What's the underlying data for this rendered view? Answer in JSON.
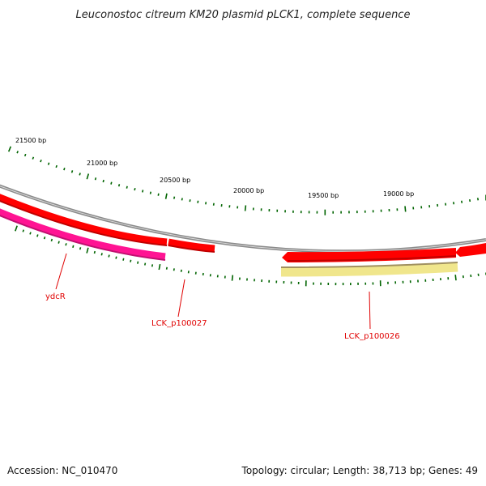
{
  "title": "Leuconostoc citreum KM20 plasmid pLCK1, complete sequence",
  "scale_labels": [
    {
      "bp": 21500,
      "text": "21500 bp"
    },
    {
      "bp": 21000,
      "text": "21000 bp"
    },
    {
      "bp": 20500,
      "text": "20500 bp"
    },
    {
      "bp": 20000,
      "text": "20000 bp"
    },
    {
      "bp": 19500,
      "text": "19500 bp"
    },
    {
      "bp": 19000,
      "text": "19000 bp"
    }
  ],
  "genes": [
    {
      "id": "ydcR",
      "label": "ydcR",
      "color": "#ff1493",
      "strand": "minus"
    },
    {
      "id": "LCK_p100027",
      "label": "LCK_p100027",
      "color": "#ff0000",
      "strand": "plus"
    },
    {
      "id": "LCK_p100026",
      "label": "LCK_p100026",
      "color": "#ff0000",
      "strand": "plus",
      "secondary_color": "#f0e68c"
    }
  ],
  "colors": {
    "backbone": "#808080",
    "cds_plus": "#ff0000",
    "cds_minus": "#ff1493",
    "feature_other": "#f0e68c",
    "ticks": "#006400",
    "gene_label": "#e00000"
  },
  "footer": {
    "accession": "Accession: NC_010470",
    "topology": "Topology: circular; Length: 38,713 bp; Genes: 49"
  }
}
